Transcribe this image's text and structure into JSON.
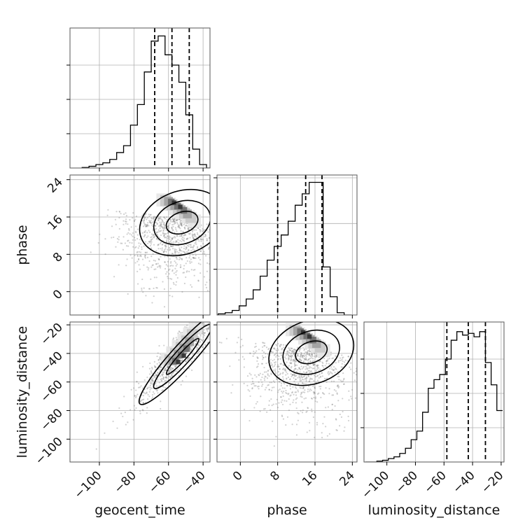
{
  "chart_data": [
    {
      "type": "histogram",
      "panel": "diag-geocent_time",
      "variable": "geocent_time",
      "xlim": [
        -117,
        -36
      ],
      "x": [
        -108,
        -104,
        -100,
        -96,
        -92,
        -88,
        -84,
        -80,
        -76,
        -72,
        -68,
        -64,
        -60,
        -56,
        -52,
        -48,
        -44,
        -40,
        -36
      ],
      "values": [
        0.3,
        1,
        2,
        3,
        5,
        9,
        13,
        25,
        37,
        56,
        74,
        77,
        66,
        60,
        50,
        31,
        11,
        2,
        0
      ],
      "quantiles": [
        -68,
        -58,
        -48
      ],
      "ylim": [
        0,
        80
      ],
      "grid": true
    },
    {
      "type": "scatter",
      "panel": "phase-vs-geocent_time",
      "x_variable": "geocent_time",
      "y_variable": "phase",
      "xlim": [
        -117,
        -36
      ],
      "ylim": [
        -5,
        25
      ],
      "yticks": [
        "0",
        "8",
        "16",
        "24"
      ],
      "ylabel": "phase",
      "grid": true,
      "density_peak": [
        -50,
        17
      ]
    },
    {
      "type": "histogram",
      "panel": "diag-phase",
      "variable": "phase",
      "xlim": [
        -5,
        25
      ],
      "x": [
        -4,
        -2.5,
        -1,
        0.5,
        2,
        3.5,
        5,
        6.5,
        8,
        9.5,
        11,
        12.5,
        14,
        15.5,
        17,
        18.5,
        20,
        21.5,
        23
      ],
      "values": [
        0.5,
        1,
        2,
        4,
        7,
        11,
        17,
        24,
        30,
        35,
        41,
        48,
        53,
        58,
        58,
        21,
        8,
        1,
        0
      ],
      "quantiles": [
        8,
        14,
        17.5
      ],
      "ylim": [
        0,
        60
      ],
      "grid": true
    },
    {
      "type": "scatter",
      "panel": "luminosity_distance-vs-geocent_time",
      "x_variable": "geocent_time",
      "y_variable": "luminosity_distance",
      "xlim": [
        -117,
        -36
      ],
      "ylim": [
        -116,
        -18
      ],
      "xticks": [
        "−100",
        "−80",
        "−60",
        "−40"
      ],
      "yticks": [
        "−100",
        "−80",
        "−60",
        "−40",
        "−20"
      ],
      "xlabel": "geocent_time",
      "ylabel": "luminosity_distance",
      "grid": true,
      "density_peak": [
        -52,
        -38
      ]
    },
    {
      "type": "scatter",
      "panel": "luminosity_distance-vs-phase",
      "x_variable": "phase",
      "y_variable": "luminosity_distance",
      "xlim": [
        -5,
        25
      ],
      "ylim": [
        -116,
        -18
      ],
      "xticks": [
        "0",
        "8",
        "16",
        "24"
      ],
      "xlabel": "phase",
      "grid": true,
      "density_peak": [
        16,
        -32
      ]
    },
    {
      "type": "histogram",
      "panel": "diag-luminosity_distance",
      "variable": "luminosity_distance",
      "xlim": [
        -116,
        -18
      ],
      "x": [
        -113,
        -109,
        -105,
        -101,
        -97,
        -93,
        -89,
        -85,
        -81,
        -77,
        -73,
        -69,
        -65,
        -61,
        -57,
        -53,
        -49,
        -45,
        -41,
        -37,
        -33,
        -29,
        -25,
        -21
      ],
      "values": [
        0,
        0,
        0.5,
        1,
        2,
        3,
        5,
        8,
        13,
        18,
        29,
        43,
        48,
        51,
        60,
        71,
        76,
        74,
        75,
        73,
        76,
        58,
        45,
        30
      ],
      "quantiles": [
        -58,
        -43,
        -31
      ],
      "ylim": [
        0,
        80
      ],
      "xticks": [
        "−100",
        "−80",
        "−60",
        "−40",
        "−20"
      ],
      "xlabel": "luminosity_distance",
      "grid": true
    }
  ]
}
